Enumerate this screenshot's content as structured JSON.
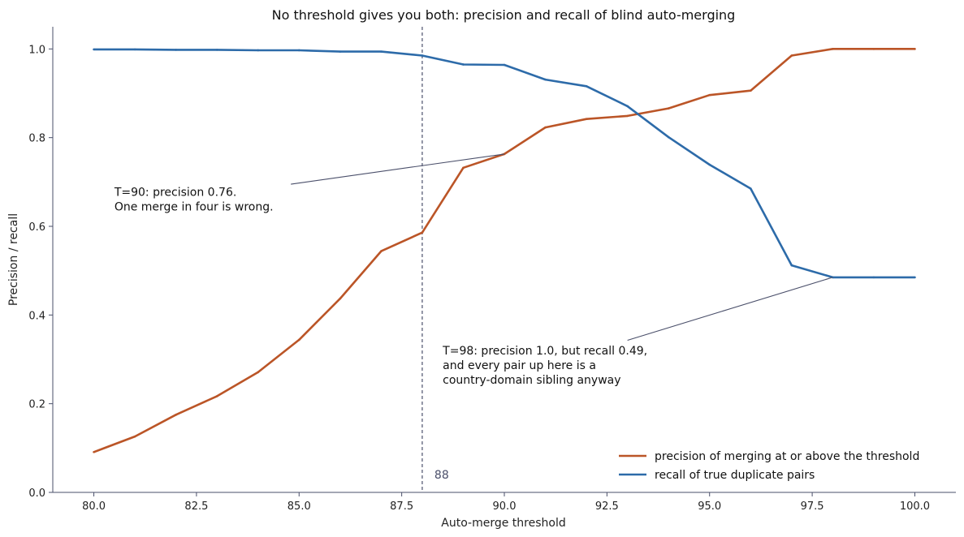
{
  "chart_data": {
    "type": "line",
    "title": "No threshold gives you both: precision and recall of blind auto-merging",
    "xlabel": "Auto-merge threshold",
    "ylabel": "Precision / recall",
    "xlim": [
      79,
      101
    ],
    "ylim": [
      0,
      1.05
    ],
    "xticks": [
      80,
      82.5,
      85,
      87.5,
      90,
      92.5,
      95,
      97.5,
      100
    ],
    "xtick_labels": [
      "80.0",
      "82.5",
      "85.0",
      "87.5",
      "90.0",
      "92.5",
      "95.0",
      "97.5",
      "100.0"
    ],
    "yticks": [
      0,
      0.2,
      0.4,
      0.6,
      0.8,
      1.0
    ],
    "ytick_labels": [
      "0.0",
      "0.2",
      "0.4",
      "0.6",
      "0.8",
      "1.0"
    ],
    "grid": false,
    "legend_position": "lower-right",
    "x": [
      80,
      81,
      82,
      83,
      84,
      85,
      86,
      87,
      88,
      89,
      90,
      91,
      92,
      93,
      94,
      95,
      96,
      97,
      98,
      99,
      100
    ],
    "series": [
      {
        "name": "precision of merging at or above the threshold",
        "color": "#bb5527",
        "values": [
          0.091,
          0.126,
          0.175,
          0.217,
          0.271,
          0.344,
          0.437,
          0.544,
          0.586,
          0.732,
          0.763,
          0.823,
          0.842,
          0.849,
          0.866,
          0.896,
          0.906,
          0.985,
          1.0,
          1.0,
          1.0
        ]
      },
      {
        "name": "recall of true duplicate pairs",
        "color": "#2d6ba9",
        "values": [
          0.999,
          0.999,
          0.998,
          0.998,
          0.997,
          0.997,
          0.994,
          0.994,
          0.985,
          0.965,
          0.964,
          0.931,
          0.916,
          0.871,
          0.801,
          0.739,
          0.685,
          0.512,
          0.485,
          0.485,
          0.485
        ]
      }
    ],
    "vline": {
      "x": 88,
      "label": "88",
      "color": "#4a4f6a"
    },
    "annotations": [
      {
        "lines": [
          "T=90: precision 0.76.",
          "One merge in four is wrong."
        ],
        "point": [
          90,
          0.763
        ],
        "text_at": [
          80.5,
          0.676
        ],
        "arrow_from": [
          84.8,
          0.695
        ]
      },
      {
        "lines": [
          "T=98: precision 1.0, but recall 0.49,",
          "and every pair up here is a",
          "country-domain sibling anyway"
        ],
        "point": [
          98,
          0.485
        ],
        "text_at": [
          88.5,
          0.318
        ],
        "arrow_from": [
          93,
          0.343
        ]
      }
    ]
  }
}
